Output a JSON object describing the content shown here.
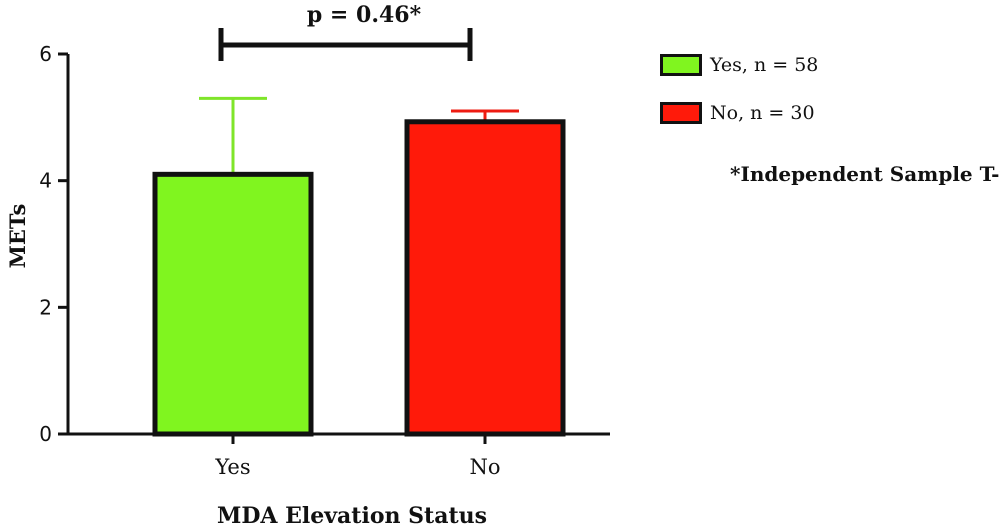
{
  "chart_data": {
    "type": "bar",
    "categories": [
      "Yes",
      "No"
    ],
    "values": [
      4.1,
      4.93
    ],
    "error_upper": [
      5.3,
      5.1
    ],
    "colors": [
      "#80f51f",
      "#ff1a0a"
    ],
    "error_colors": [
      "#7fe52a",
      "#ee1c12"
    ],
    "ylabel": "METs",
    "xlabel": "MDA Elevation Status",
    "ylim": [
      0,
      6
    ],
    "yticks": [
      0,
      2,
      4,
      6
    ],
    "grid": false,
    "legend": {
      "placement": "right",
      "entries": [
        {
          "label": "Yes, n = 58",
          "color": "#80f51f"
        },
        {
          "label": "No, n = 30",
          "color": "#ff1a0a"
        }
      ]
    },
    "annotation": "p = 0.46*",
    "note": "*Independent Sample T-test"
  }
}
